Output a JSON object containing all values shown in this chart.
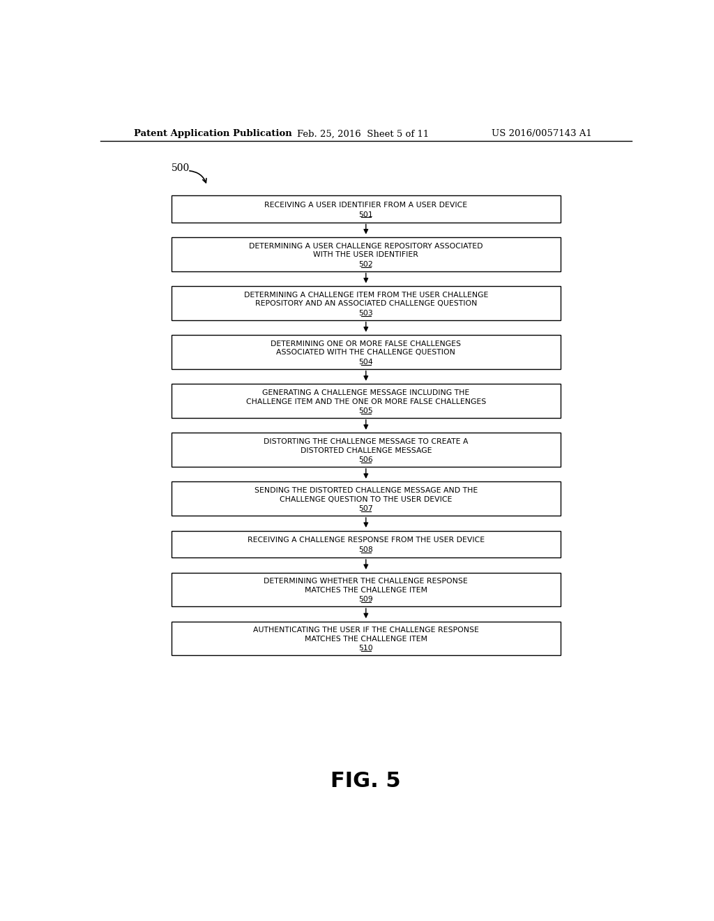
{
  "bg_color": "#ffffff",
  "header_left": "Patent Application Publication",
  "header_mid": "Feb. 25, 2016  Sheet 5 of 11",
  "header_right": "US 2016/0057143 A1",
  "figure_label": "FIG. 5",
  "flow_label": "500",
  "steps": [
    {
      "id": "501",
      "text_lines": [
        "RECEIVING A USER IDENTIFIER FROM A USER DEVICE"
      ],
      "num": "501",
      "nlines": 1
    },
    {
      "id": "502",
      "text_lines": [
        "DETERMINING A USER CHALLENGE REPOSITORY ASSOCIATED",
        "WITH THE USER IDENTIFIER"
      ],
      "num": "502",
      "nlines": 2
    },
    {
      "id": "503",
      "text_lines": [
        "DETERMINING A CHALLENGE ITEM FROM THE USER CHALLENGE",
        "REPOSITORY AND AN ASSOCIATED CHALLENGE QUESTION"
      ],
      "num": "503",
      "nlines": 2
    },
    {
      "id": "504",
      "text_lines": [
        "DETERMINING ONE OR MORE FALSE CHALLENGES",
        "ASSOCIATED WITH THE CHALLENGE QUESTION"
      ],
      "num": "504",
      "nlines": 2
    },
    {
      "id": "505",
      "text_lines": [
        "GENERATING A CHALLENGE MESSAGE INCLUDING THE",
        "CHALLENGE ITEM AND THE ONE OR MORE FALSE CHALLENGES"
      ],
      "num": "505",
      "nlines": 2
    },
    {
      "id": "506",
      "text_lines": [
        "DISTORTING THE CHALLENGE MESSAGE TO CREATE A",
        "DISTORTED CHALLENGE MESSAGE"
      ],
      "num": "506",
      "nlines": 2
    },
    {
      "id": "507",
      "text_lines": [
        "SENDING THE DISTORTED CHALLENGE MESSAGE AND THE",
        "CHALLENGE QUESTION TO THE USER DEVICE"
      ],
      "num": "507",
      "nlines": 2
    },
    {
      "id": "508",
      "text_lines": [
        "RECEIVING A CHALLENGE RESPONSE FROM THE USER DEVICE"
      ],
      "num": "508",
      "nlines": 1
    },
    {
      "id": "509",
      "text_lines": [
        "DETERMINING WHETHER THE CHALLENGE RESPONSE",
        "MATCHES THE CHALLENGE ITEM"
      ],
      "num": "509",
      "nlines": 2
    },
    {
      "id": "510",
      "text_lines": [
        "AUTHENTICATING THE USER IF THE CHALLENGE RESPONSE",
        "MATCHES THE CHALLENGE ITEM"
      ],
      "num": "510",
      "nlines": 2
    }
  ]
}
